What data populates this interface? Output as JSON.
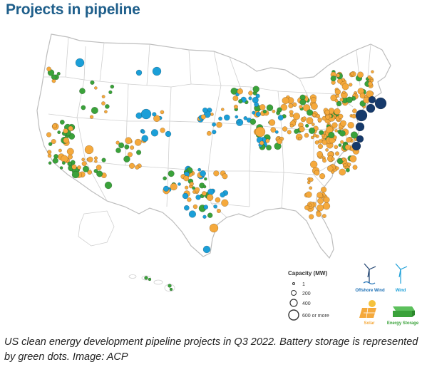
{
  "title": "Projects in pipeline",
  "caption": "US clean energy development pipeline projects in Q3 2022. Battery storage is represented by green dots. Image: ACP",
  "colors": {
    "title": "#1f5f8b",
    "solar": "#f5a93c",
    "wind": "#1b9fd8",
    "offshore_wind": "#163a6b",
    "energy_storage": "#3aa23a",
    "state_border": "#c8c8c8",
    "land": "#ffffff"
  },
  "legend": {
    "capacity_title": "Capacity (MW)",
    "sizes": [
      "1",
      "200",
      "400",
      "600 or more"
    ],
    "types": [
      {
        "label": "Offshore Wind",
        "color": "#1b6fb5",
        "icon": "offshore-wind-turbine-icon"
      },
      {
        "label": "Wind",
        "color": "#1b9fd8",
        "icon": "wind-turbine-icon"
      },
      {
        "label": "Solar",
        "color": "#f5a93c",
        "icon": "solar-panel-icon"
      },
      {
        "label": "Energy Storage",
        "color": "#3aa23a",
        "icon": "battery-icon"
      }
    ]
  }
}
